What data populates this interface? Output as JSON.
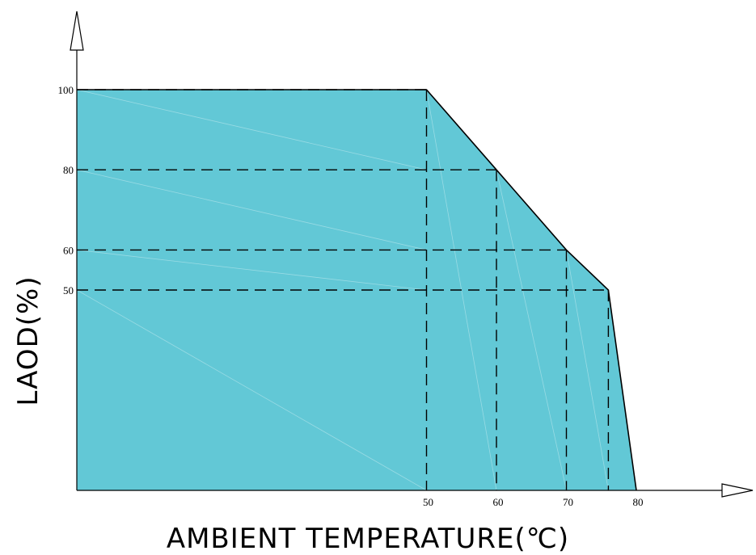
{
  "chart_data": {
    "type": "area",
    "title": "",
    "xlabel": "AMBIENT TEMPERATURE(℃)",
    "ylabel": "LAOD(%)",
    "x_ticks": [
      50,
      60,
      70,
      80
    ],
    "y_ticks": [
      100,
      80,
      60,
      50
    ],
    "xlim": [
      0,
      80
    ],
    "ylim": [
      0,
      100
    ],
    "fill_color": "#62c8d6",
    "grid": false,
    "legend": "none",
    "series": [
      {
        "x": [
          0,
          50,
          60,
          70,
          76,
          80
        ],
        "y": [
          100,
          100,
          80,
          60,
          50,
          0
        ]
      }
    ],
    "guides": [
      {
        "x": 50,
        "y": 100
      },
      {
        "x": 60,
        "y": 80
      },
      {
        "x": 70,
        "y": 60
      },
      {
        "x": 76,
        "y": 50
      }
    ]
  }
}
